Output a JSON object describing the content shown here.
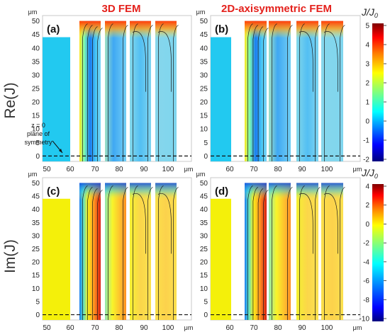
{
  "headers": {
    "left": "3D FEM",
    "right": "2D-axisymmetric FEM"
  },
  "row_labels": {
    "top": "Re(J)",
    "bottom": "Im(J)"
  },
  "colorbar_title": {
    "main": "J",
    "sub": "0",
    "sep": "/J"
  },
  "axis_unit": "μm",
  "annotation": {
    "l1": "z = 0",
    "l2": "plane of",
    "l3": "symmetry"
  },
  "panels": [
    {
      "id": "a",
      "label": "(a)",
      "quantity": "Re(J)",
      "method": "3D FEM",
      "conductor_color": "#22c9f0"
    },
    {
      "id": "b",
      "label": "(b)",
      "quantity": "Re(J)",
      "method": "2D-axisymmetric FEM",
      "conductor_color": "#22c9f0"
    },
    {
      "id": "c",
      "label": "(c)",
      "quantity": "Im(J)",
      "method": "3D FEM",
      "conductor_color": "#f4f00a"
    },
    {
      "id": "d",
      "label": "(d)",
      "quantity": "Im(J)",
      "method": "2D-axisymmetric FEM",
      "conductor_color": "#f4f00a"
    }
  ],
  "chart_data": {
    "type": "heatmap",
    "x_unit": "μm",
    "y_unit": "μm",
    "panel_x_ticks": {
      "a": [
        "50",
        "60",
        "70",
        "80",
        "90",
        "100"
      ],
      "b": [
        "60",
        "70",
        "80",
        "90",
        "100"
      ],
      "c": [
        "50",
        "60",
        "70",
        "80",
        "90",
        "100"
      ],
      "d": [
        "60",
        "70",
        "80",
        "90",
        "100"
      ]
    },
    "y_ticks": [
      "0",
      "5",
      "10",
      "15",
      "20",
      "25",
      "30",
      "35",
      "40",
      "45",
      "50"
    ],
    "ylim": [
      -2,
      52
    ],
    "colorbars": [
      {
        "rows": "Re(J)",
        "ticks": [
          "-2",
          "-1",
          "0",
          "1",
          "2",
          "3",
          "4",
          "5"
        ],
        "range": [
          -2,
          5
        ]
      },
      {
        "rows": "Im(J)",
        "ticks": [
          "-10",
          "-8",
          "-6",
          "-4",
          "-2",
          "0",
          "2",
          "4"
        ],
        "range": [
          -10,
          4
        ]
      }
    ],
    "colormap": [
      "#00007f",
      "#0000ff",
      "#007fff",
      "#00ffff",
      "#7fff7f",
      "#ffff00",
      "#ff7f00",
      "#ff0000",
      "#7f0000"
    ],
    "symmetry_plane_z": 0,
    "conductor_height": 44,
    "turns_top": 50,
    "turns_bottom": 0
  }
}
